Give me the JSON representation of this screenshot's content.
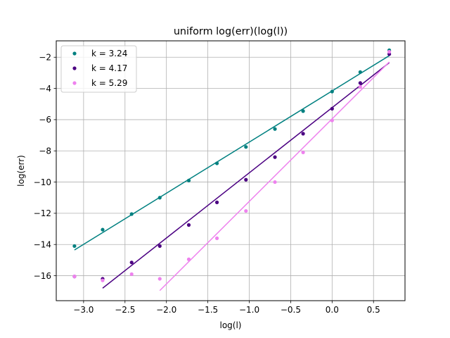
{
  "chart_data": {
    "type": "scatter",
    "title": "uniform log(err)(log(l))",
    "xlabel": "log(l)",
    "ylabel": "log(err)",
    "xlim": [
      -3.33,
      0.88
    ],
    "ylim": [
      -17.6,
      -0.95
    ],
    "xticks": [
      -3.0,
      -2.5,
      -2.0,
      -1.5,
      -1.0,
      -0.5,
      0.0,
      0.5
    ],
    "xtick_labels": [
      "−3.0",
      "−2.5",
      "−2.0",
      "−1.5",
      "−1.0",
      "−0.5",
      "0.0",
      "0.5"
    ],
    "yticks": [
      -16,
      -14,
      -12,
      -10,
      -8,
      -6,
      -4,
      -2
    ],
    "ytick_labels": [
      "−16",
      "−14",
      "−12",
      "−10",
      "−8",
      "−6",
      "−4",
      "−2"
    ],
    "grid": true,
    "legend_position": "top-left",
    "series": [
      {
        "name": "k = 3.24",
        "color": "#008080",
        "x": [
          -3.11,
          -2.77,
          -2.42,
          -2.08,
          -1.73,
          -1.39,
          -1.04,
          -0.69,
          -0.35,
          0.0,
          0.34,
          0.69
        ],
        "y": [
          -14.1,
          -13.05,
          -12.05,
          -11.0,
          -9.9,
          -8.8,
          -7.75,
          -6.6,
          -5.45,
          -4.2,
          -2.95,
          -1.55
        ],
        "fit_x": [
          -3.11,
          0.69
        ],
        "fit_y": [
          -14.35,
          -1.9
        ]
      },
      {
        "name": "k = 4.17",
        "color": "#4b0082",
        "x": [
          -3.11,
          -2.77,
          -2.42,
          -2.08,
          -1.73,
          -1.39,
          -1.04,
          -0.69,
          -0.35,
          0.0,
          0.34,
          0.69
        ],
        "y": [
          -16.05,
          -16.2,
          -15.15,
          -14.1,
          -12.75,
          -11.3,
          -9.85,
          -8.4,
          -6.9,
          -5.3,
          -3.65,
          -1.8
        ],
        "fit_x": [
          -2.77,
          0.69
        ],
        "fit_y": [
          -16.8,
          -2.35
        ]
      },
      {
        "name": "k = 5.29",
        "color": "#ee82ee",
        "x": [
          -3.11,
          -2.77,
          -2.42,
          -2.08,
          -1.73,
          -1.39,
          -1.04,
          -0.69,
          -0.35,
          0.0,
          0.34,
          0.69
        ],
        "y": [
          -16.05,
          -16.3,
          -15.9,
          -16.2,
          -14.95,
          -13.6,
          -11.85,
          -10.0,
          -8.1,
          -6.05,
          -3.9,
          -1.65
        ],
        "fit_x": [
          -2.08,
          0.69
        ],
        "fit_y": [
          -16.95,
          -2.3
        ]
      }
    ]
  }
}
